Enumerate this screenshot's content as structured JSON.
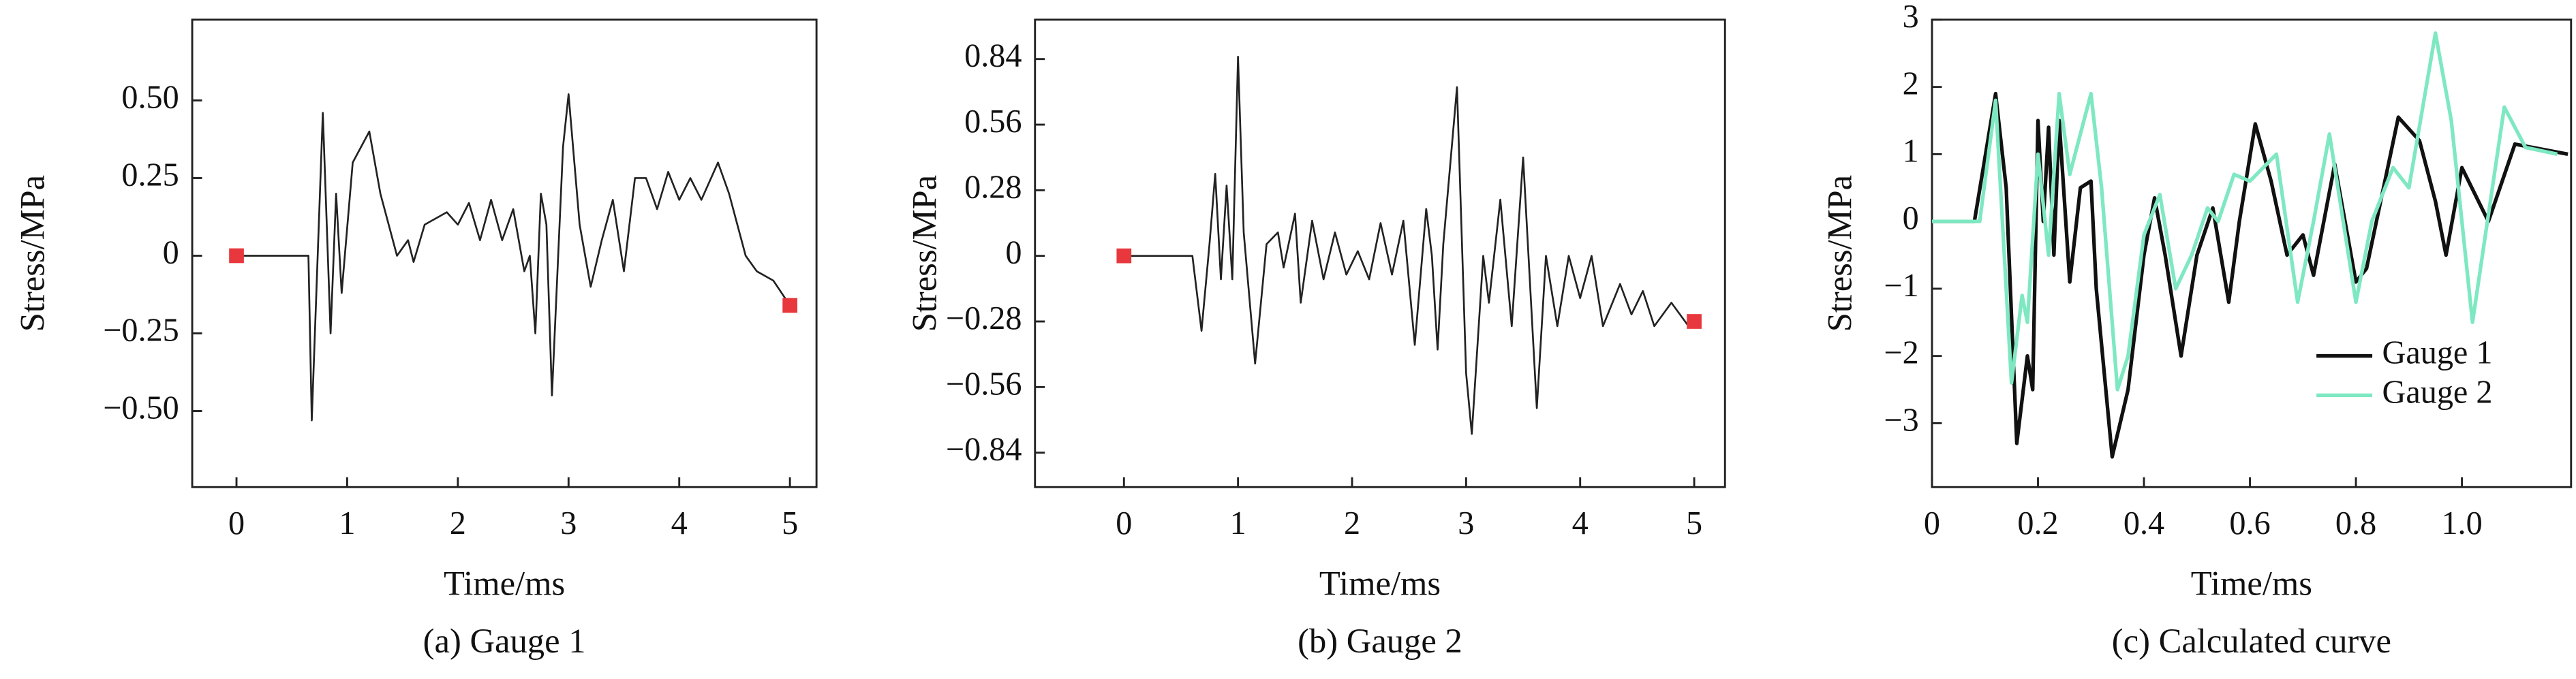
{
  "chart_data": [
    {
      "type": "line",
      "caption": "(a) Gauge 1",
      "xlabel": "Time/ms",
      "ylabel": "Stress/MPa",
      "xlim": [
        -0.4,
        5.24
      ],
      "ylim": [
        -0.745,
        0.76
      ],
      "xticks": [
        0,
        1,
        2,
        3,
        4,
        5
      ],
      "yticks": [
        {
          "value": -0.5,
          "label": "−0.50"
        },
        {
          "value": -0.25,
          "label": "−0.25"
        },
        0,
        {
          "value": 0.25,
          "label": "0.25"
        },
        {
          "value": 0.5,
          "label": "0.50"
        }
      ],
      "color": "#222222",
      "x": [
        0,
        0.3,
        0.65,
        0.68,
        0.78,
        0.85,
        0.9,
        0.95,
        1.05,
        1.2,
        1.3,
        1.45,
        1.55,
        1.6,
        1.7,
        1.9,
        2.0,
        2.1,
        2.2,
        2.3,
        2.4,
        2.5,
        2.6,
        2.65,
        2.7,
        2.75,
        2.8,
        2.85,
        2.95,
        3.0,
        3.1,
        3.2,
        3.3,
        3.4,
        3.5,
        3.6,
        3.7,
        3.8,
        3.9,
        4.0,
        4.1,
        4.2,
        4.35,
        4.45,
        4.6,
        4.7,
        4.85,
        5.0
      ],
      "values": [
        0,
        0,
        0,
        -0.53,
        0.46,
        -0.25,
        0.2,
        -0.12,
        0.3,
        0.4,
        0.2,
        0,
        0.05,
        -0.02,
        0.1,
        0.14,
        0.1,
        0.17,
        0.05,
        0.18,
        0.05,
        0.15,
        -0.05,
        0,
        -0.25,
        0.2,
        0.1,
        -0.45,
        0.35,
        0.52,
        0.1,
        -0.1,
        0.05,
        0.18,
        -0.05,
        0.25,
        0.25,
        0.15,
        0.27,
        0.18,
        0.25,
        0.18,
        0.3,
        0.2,
        0,
        -0.05,
        -0.08,
        -0.16
      ],
      "markers": {
        "color": "#e8383d",
        "x": [
          0,
          5
        ],
        "values": [
          0,
          -0.16
        ]
      }
    },
    {
      "type": "line",
      "caption": "(b) Gauge 2",
      "xlabel": "Time/ms",
      "ylabel": "Stress/MPa",
      "xlim": [
        -0.78,
        5.27
      ],
      "ylim": [
        -0.987,
        1.008
      ],
      "xticks": [
        0,
        1,
        2,
        3,
        4,
        5
      ],
      "yticks": [
        {
          "value": -0.84,
          "label": "−0.84"
        },
        {
          "value": -0.56,
          "label": "−0.56"
        },
        {
          "value": -0.28,
          "label": "−0.28"
        },
        0,
        0.28,
        0.56,
        0.84
      ],
      "color": "#222222",
      "x": [
        0,
        0.3,
        0.6,
        0.68,
        0.75,
        0.8,
        0.85,
        0.9,
        0.95,
        1.0,
        1.05,
        1.15,
        1.25,
        1.35,
        1.4,
        1.5,
        1.55,
        1.65,
        1.75,
        1.85,
        1.95,
        2.05,
        2.15,
        2.25,
        2.35,
        2.45,
        2.55,
        2.65,
        2.7,
        2.75,
        2.8,
        2.92,
        3.0,
        3.05,
        3.15,
        3.2,
        3.3,
        3.4,
        3.5,
        3.62,
        3.7,
        3.8,
        3.9,
        4.0,
        4.1,
        4.2,
        4.35,
        4.45,
        4.55,
        4.65,
        4.8,
        4.95,
        5.0
      ],
      "values": [
        0,
        0,
        0,
        -0.32,
        0.05,
        0.35,
        -0.1,
        0.3,
        -0.1,
        0.85,
        0.1,
        -0.46,
        0.05,
        0.1,
        -0.05,
        0.18,
        -0.2,
        0.15,
        -0.1,
        0.1,
        -0.08,
        0.02,
        -0.1,
        0.14,
        -0.08,
        0.15,
        -0.38,
        0.2,
        0,
        -0.4,
        0.05,
        0.72,
        -0.5,
        -0.76,
        0,
        -0.2,
        0.24,
        -0.3,
        0.42,
        -0.65,
        0,
        -0.3,
        0,
        -0.18,
        0,
        -0.3,
        -0.12,
        -0.25,
        -0.15,
        -0.3,
        -0.2,
        -0.3,
        -0.28
      ],
      "markers": {
        "color": "#e8383d",
        "x": [
          0,
          5
        ],
        "values": [
          0,
          -0.28
        ]
      }
    },
    {
      "type": "line",
      "caption": "(c) Calculated curve",
      "xlabel": "Time/ms",
      "ylabel": "Stress/MPa",
      "xlim": [
        0,
        1.206
      ],
      "ylim": [
        -3.95,
        3
      ],
      "xticks": [
        0,
        0.2,
        0.4,
        0.6,
        0.8,
        {
          "value": 1,
          "label": "1.0"
        }
      ],
      "yticks": [
        {
          "value": -3,
          "label": "−3"
        },
        {
          "value": -2,
          "label": "−2"
        },
        {
          "value": -1,
          "label": "−1"
        },
        0,
        1,
        2,
        3
      ],
      "legend": "lower right",
      "series": [
        {
          "name": "Gauge 1",
          "color": "#111111",
          "x": [
            0,
            0.08,
            0.12,
            0.14,
            0.16,
            0.18,
            0.19,
            0.2,
            0.21,
            0.22,
            0.23,
            0.24,
            0.26,
            0.28,
            0.3,
            0.31,
            0.34,
            0.37,
            0.4,
            0.42,
            0.44,
            0.47,
            0.5,
            0.53,
            0.56,
            0.58,
            0.61,
            0.64,
            0.67,
            0.7,
            0.72,
            0.76,
            0.8,
            0.82,
            0.86,
            0.88,
            0.92,
            0.95,
            0.97,
            1.0,
            1.05,
            1.1,
            1.2
          ],
          "values": [
            0,
            0,
            1.9,
            0.5,
            -3.3,
            -2,
            -2.5,
            1.5,
            0,
            1.4,
            -0.5,
            1.5,
            -0.9,
            0.5,
            0.6,
            -1,
            -3.5,
            -2.5,
            -0.5,
            0.35,
            -0.5,
            -2,
            -0.5,
            0.2,
            -1.2,
            0,
            1.45,
            0.6,
            -0.5,
            -0.2,
            -0.8,
            0.85,
            -0.9,
            -0.7,
            0.8,
            1.55,
            1.2,
            0.3,
            -0.5,
            0.8,
            0,
            1.15,
            1
          ]
        },
        {
          "name": "Gauge 2",
          "color": "#7ee8c2",
          "x": [
            0,
            0.09,
            0.12,
            0.15,
            0.17,
            0.18,
            0.2,
            0.22,
            0.24,
            0.26,
            0.27,
            0.3,
            0.32,
            0.35,
            0.37,
            0.4,
            0.43,
            0.46,
            0.49,
            0.52,
            0.54,
            0.57,
            0.6,
            0.65,
            0.69,
            0.72,
            0.75,
            0.8,
            0.83,
            0.87,
            0.9,
            0.95,
            0.98,
            1.02,
            1.08,
            1.12,
            1.18
          ],
          "values": [
            0,
            0,
            1.8,
            -2.4,
            -1.1,
            -1.5,
            1,
            -0.5,
            1.9,
            0.7,
            1,
            1.9,
            0.5,
            -2.5,
            -2,
            -0.2,
            0.4,
            -1,
            -0.5,
            0.2,
            0,
            0.7,
            0.6,
            1,
            -1.2,
            0,
            1.3,
            -1.2,
            0,
            0.8,
            0.5,
            2.8,
            1.5,
            -1.5,
            1.7,
            1.1,
            1
          ]
        }
      ]
    }
  ]
}
